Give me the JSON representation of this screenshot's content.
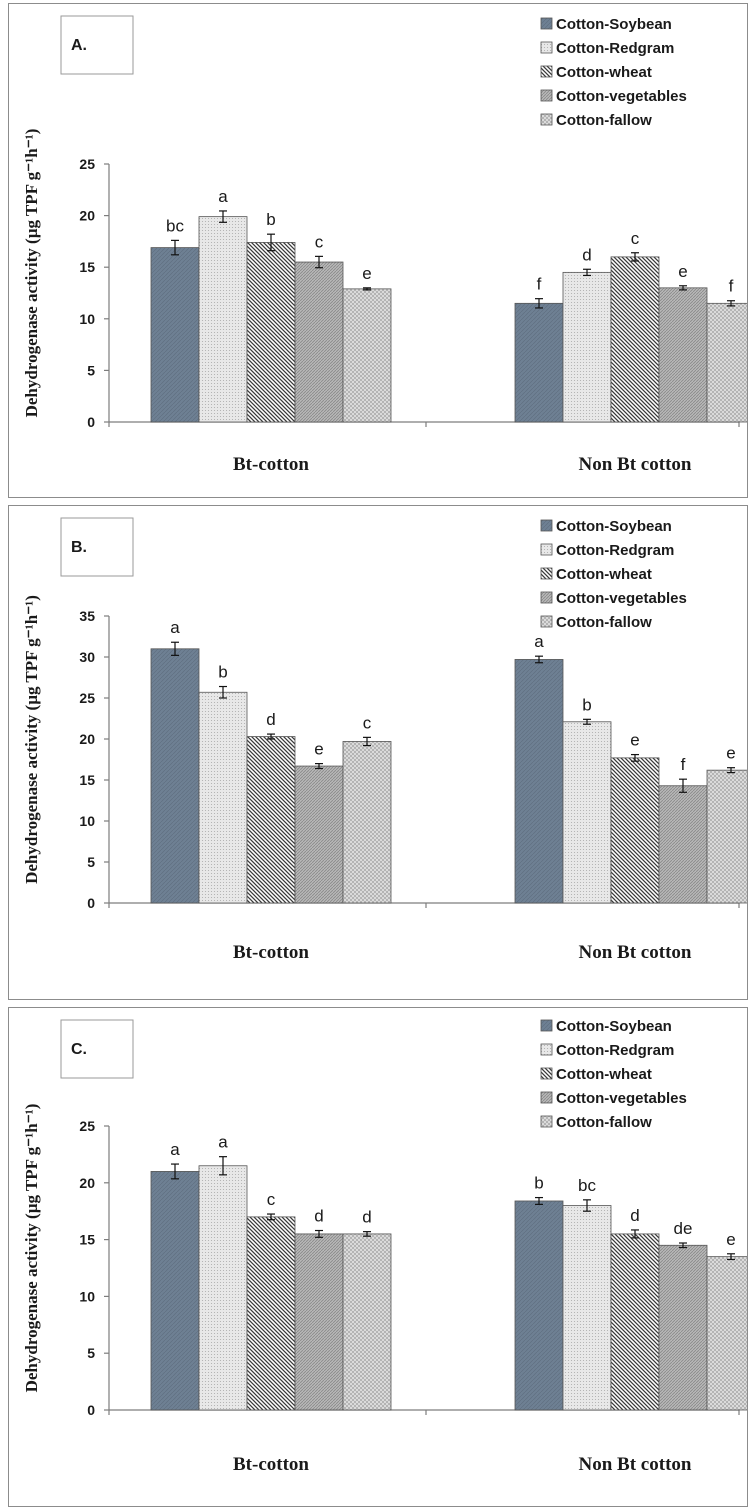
{
  "colors": {
    "soybean": "#6e8093",
    "redgram": "#e8e8e8",
    "wheat": "#ffffff",
    "vegetables": "#b8b8b8",
    "fallow": "#e0e0e0",
    "axis": "#7d7d7d",
    "frame": "#8c8c8c"
  },
  "chart_data": [
    {
      "type": "bar",
      "panel_label": "A.",
      "ylabel": "Dehydrogenase activity (µg TPF g⁻¹h⁻¹)",
      "ylim": [
        0,
        25
      ],
      "yticks": [
        0,
        5,
        10,
        15,
        20,
        25
      ],
      "categories": [
        "Bt-cotton",
        "Non Bt cotton"
      ],
      "legend_position": "top-right",
      "series": [
        {
          "name": "Cotton-Soybean",
          "values": [
            16.9,
            11.5
          ],
          "errors": [
            0.7,
            0.45
          ],
          "letters": [
            "bc",
            "f"
          ]
        },
        {
          "name": "Cotton-Redgram",
          "values": [
            19.9,
            14.5
          ],
          "errors": [
            0.55,
            0.3
          ],
          "letters": [
            "a",
            "d"
          ]
        },
        {
          "name": "Cotton-wheat",
          "values": [
            17.4,
            16.0
          ],
          "errors": [
            0.8,
            0.4
          ],
          "letters": [
            "b",
            "c"
          ]
        },
        {
          "name": "Cotton-vegetables",
          "values": [
            15.5,
            13.0
          ],
          "errors": [
            0.55,
            0.2
          ],
          "letters": [
            "c",
            "e"
          ]
        },
        {
          "name": "Cotton-fallow",
          "values": [
            12.9,
            11.5
          ],
          "errors": [
            0.1,
            0.25
          ],
          "letters": [
            "e",
            "f"
          ]
        }
      ]
    },
    {
      "type": "bar",
      "panel_label": "B.",
      "ylabel": "Dehydrogenase activity (µg TPF g⁻¹h⁻¹)",
      "ylim": [
        0,
        35
      ],
      "yticks": [
        0,
        5,
        10,
        15,
        20,
        25,
        30,
        35
      ],
      "categories": [
        "Bt-cotton",
        "Non Bt cotton"
      ],
      "legend_position": "top-right",
      "series": [
        {
          "name": "Cotton-Soybean",
          "values": [
            31.0,
            29.7
          ],
          "errors": [
            0.8,
            0.4
          ],
          "letters": [
            "a",
            "a"
          ]
        },
        {
          "name": "Cotton-Redgram",
          "values": [
            25.7,
            22.1
          ],
          "errors": [
            0.7,
            0.3
          ],
          "letters": [
            "b",
            "b"
          ]
        },
        {
          "name": "Cotton-wheat",
          "values": [
            20.3,
            17.7
          ],
          "errors": [
            0.3,
            0.4
          ],
          "letters": [
            "d",
            "e"
          ]
        },
        {
          "name": "Cotton-vegetables",
          "values": [
            16.7,
            14.3
          ],
          "errors": [
            0.3,
            0.8
          ],
          "letters": [
            "e",
            "f"
          ]
        },
        {
          "name": "Cotton-fallow",
          "values": [
            19.7,
            16.2
          ],
          "errors": [
            0.5,
            0.3
          ],
          "letters": [
            "c",
            "e"
          ]
        }
      ]
    },
    {
      "type": "bar",
      "panel_label": "C.",
      "ylabel": "Dehydrogenase activity (µg TPF g⁻¹h⁻¹)",
      "ylim": [
        0,
        25
      ],
      "yticks": [
        0,
        5,
        10,
        15,
        20,
        25
      ],
      "categories": [
        "Bt-cotton",
        "Non Bt cotton"
      ],
      "legend_position": "top-right",
      "series": [
        {
          "name": "Cotton-Soybean",
          "values": [
            21.0,
            18.4
          ],
          "errors": [
            0.65,
            0.3
          ],
          "letters": [
            "a",
            "b"
          ]
        },
        {
          "name": "Cotton-Redgram",
          "values": [
            21.5,
            18.0
          ],
          "errors": [
            0.8,
            0.5
          ],
          "letters": [
            "a",
            "bc"
          ]
        },
        {
          "name": "Cotton-wheat",
          "values": [
            17.0,
            15.5
          ],
          "errors": [
            0.25,
            0.35
          ],
          "letters": [
            "c",
            "d"
          ]
        },
        {
          "name": "Cotton-vegetables",
          "values": [
            15.5,
            14.5
          ],
          "errors": [
            0.3,
            0.2
          ],
          "letters": [
            "d",
            "de"
          ]
        },
        {
          "name": "Cotton-fallow",
          "values": [
            15.5,
            13.5
          ],
          "errors": [
            0.2,
            0.25
          ],
          "letters": [
            "d",
            "e"
          ]
        }
      ]
    }
  ]
}
